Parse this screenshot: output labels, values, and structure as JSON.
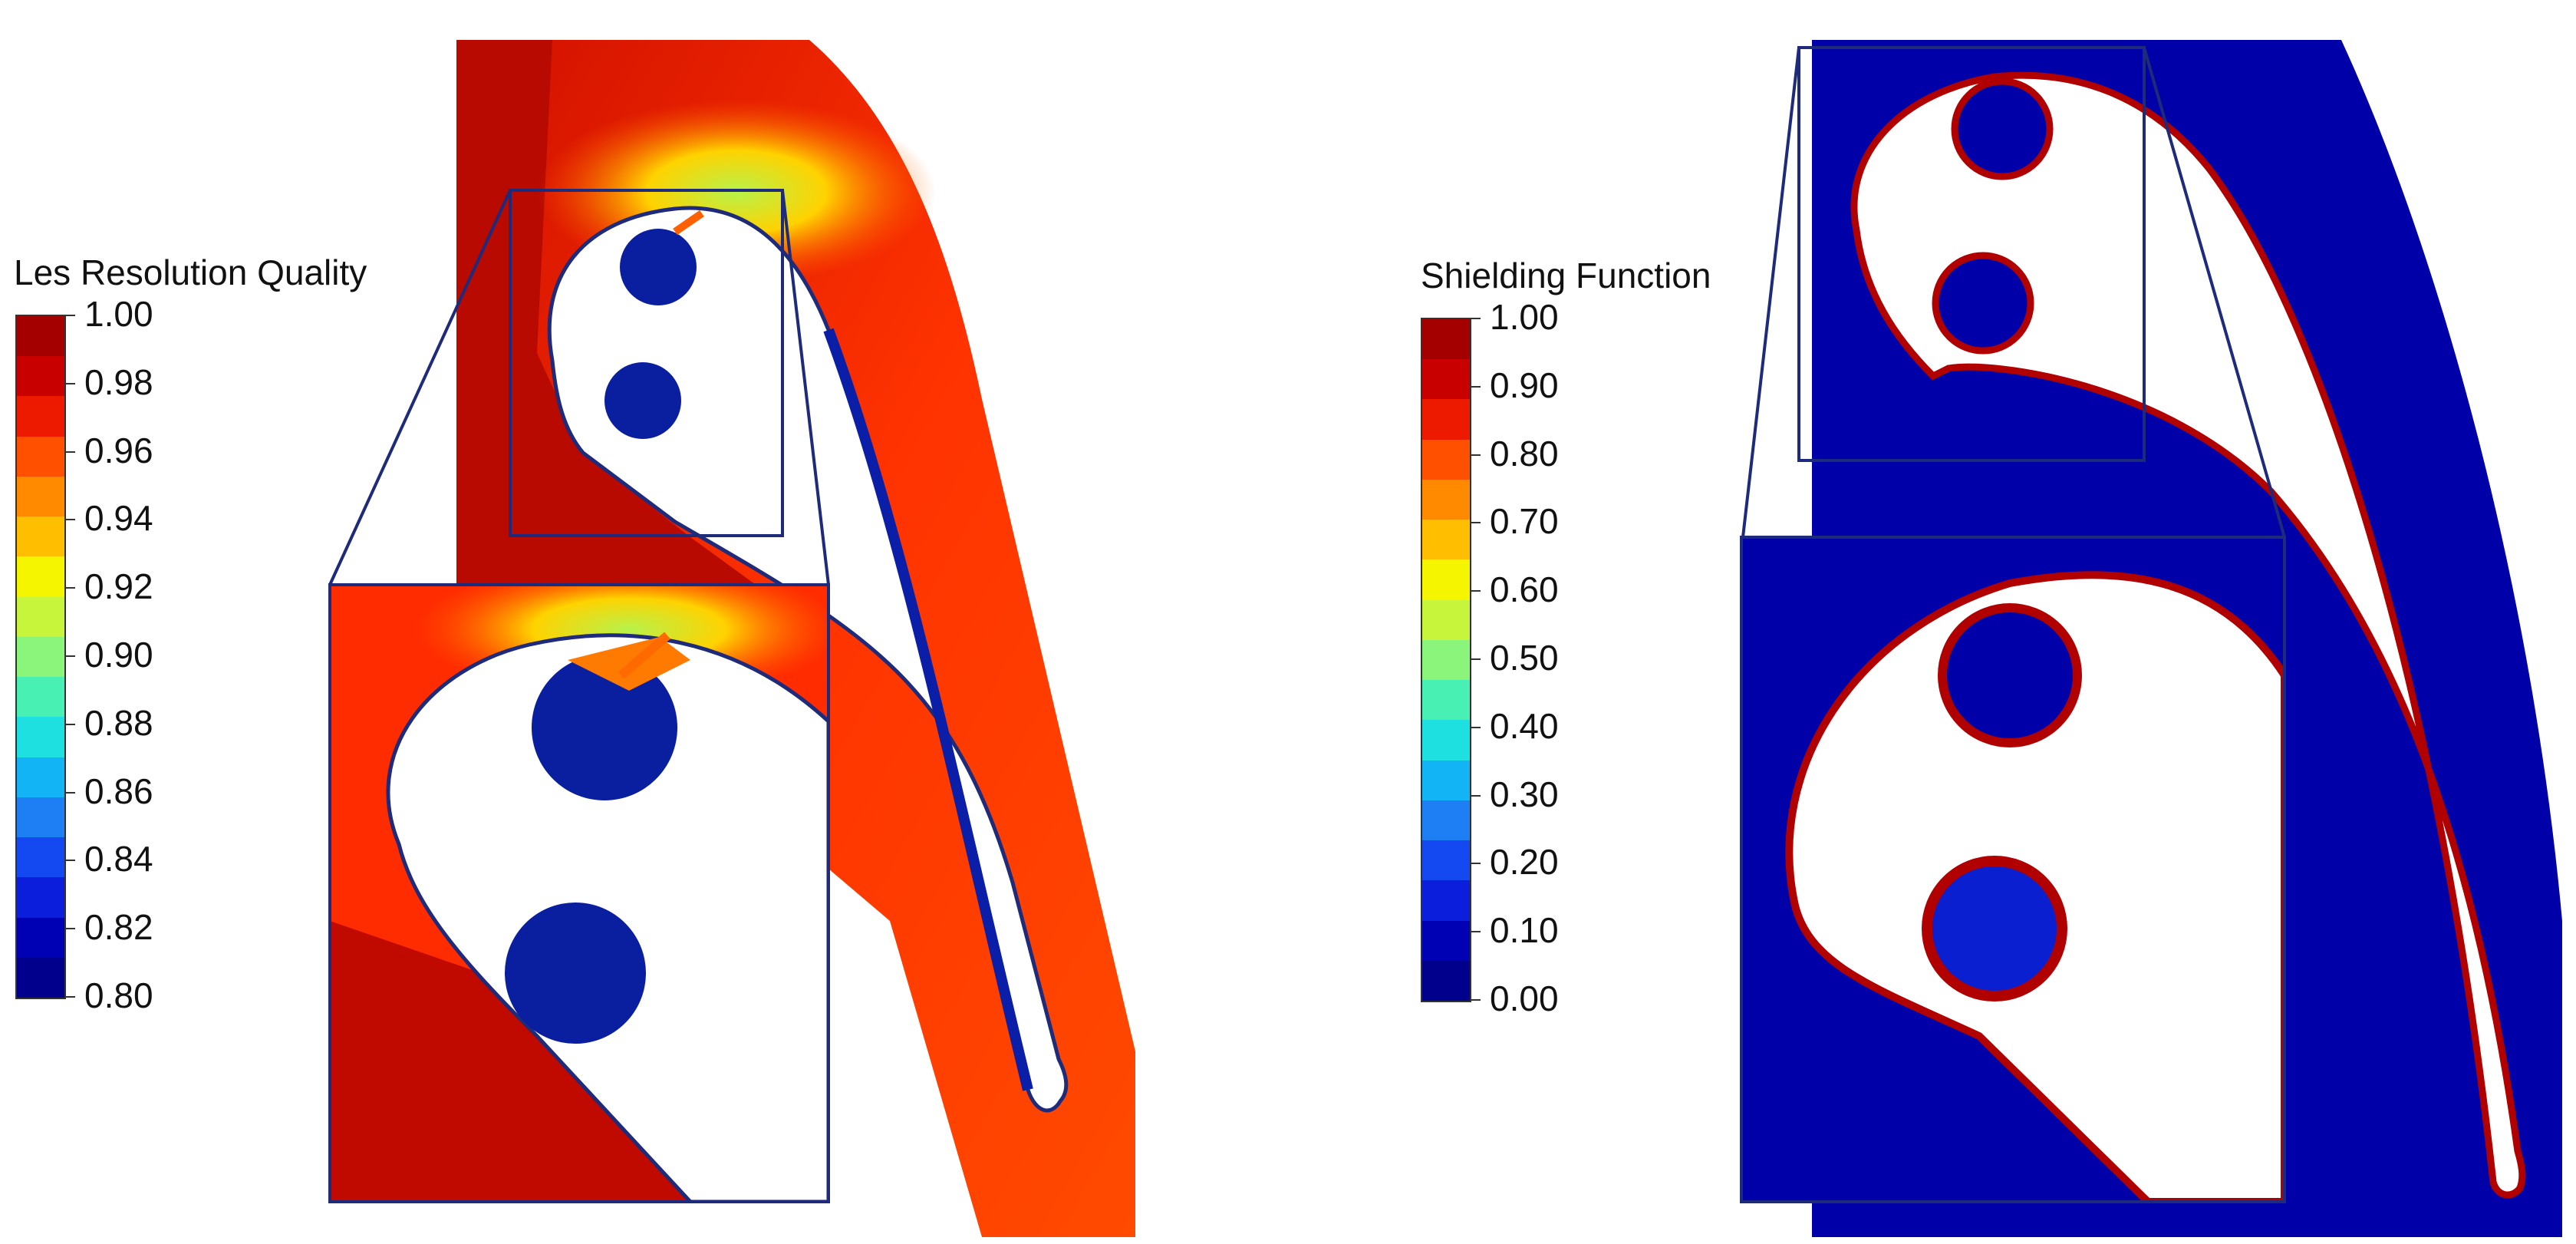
{
  "left_panel": {
    "colorbar_title": "Les Resolution Quality",
    "tick_labels": [
      "1.00",
      "0.98",
      "0.96",
      "0.94",
      "0.92",
      "0.90",
      "0.88",
      "0.86",
      "0.84",
      "0.82",
      "0.80"
    ]
  },
  "right_panel": {
    "colorbar_title": "Shielding Function",
    "tick_labels": [
      "1.00",
      "0.90",
      "0.80",
      "0.70",
      "0.60",
      "0.50",
      "0.40",
      "0.30",
      "0.20",
      "0.10",
      "0.00"
    ]
  },
  "colormap": [
    "#a50000",
    "#c80000",
    "#ee1a00",
    "#ff5000",
    "#ff8a00",
    "#ffbf00",
    "#f5f500",
    "#c6f53b",
    "#8af57a",
    "#48f0b3",
    "#1ee0e0",
    "#12b4f5",
    "#1e7ff5",
    "#1448f0",
    "#0a1edc",
    "#0000b4",
    "#00008c"
  ],
  "colors": {
    "blade_fill": "#ffffff",
    "outline": "#1e2a7a",
    "left_field": "#ff2a00",
    "left_field_dark": "#c00a00",
    "right_field": "#0000a8",
    "shield_red": "#b00000"
  }
}
